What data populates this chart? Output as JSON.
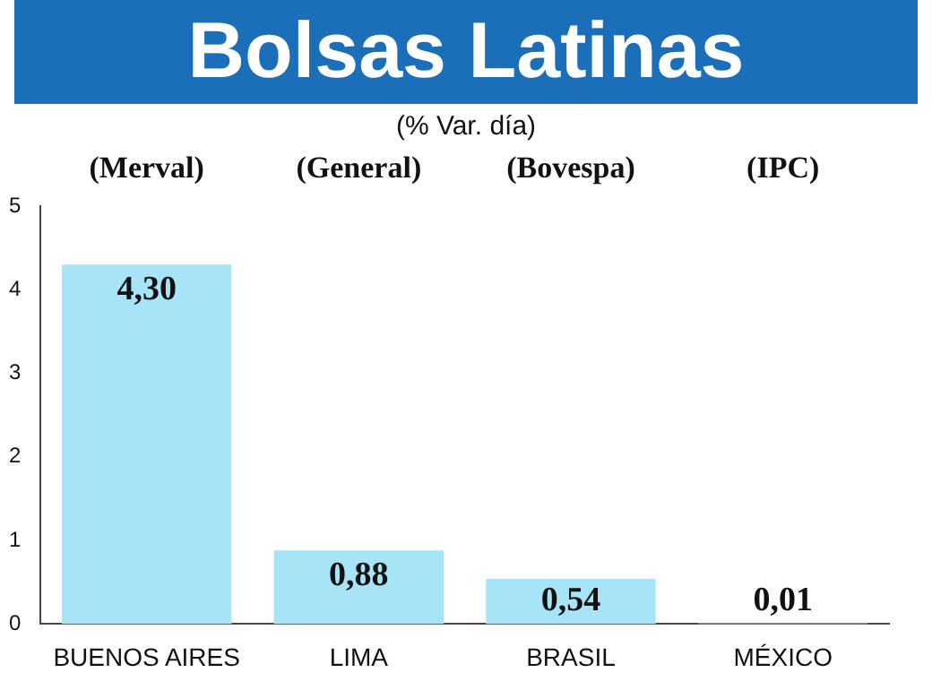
{
  "chart_data": {
    "type": "bar",
    "title": "Bolsas Latinas",
    "subtitle": "(% Var. día)",
    "categories": [
      "BUENOS AIRES",
      "LIMA",
      "BRASIL",
      "MÉXICO"
    ],
    "values": [
      4.3,
      0.88,
      0.54,
      0.01
    ],
    "value_labels": [
      "4,30",
      "0,88",
      "0,54",
      "0,01"
    ],
    "color": "#a8e4f8",
    "ylim": [
      0,
      5
    ],
    "yticks": [
      0,
      1,
      2,
      3,
      4,
      5
    ],
    "grid": false,
    "legend": false,
    "annotations": [
      "(Merval)",
      "(General)",
      "(Bovespa)",
      "(IPC)"
    ]
  }
}
